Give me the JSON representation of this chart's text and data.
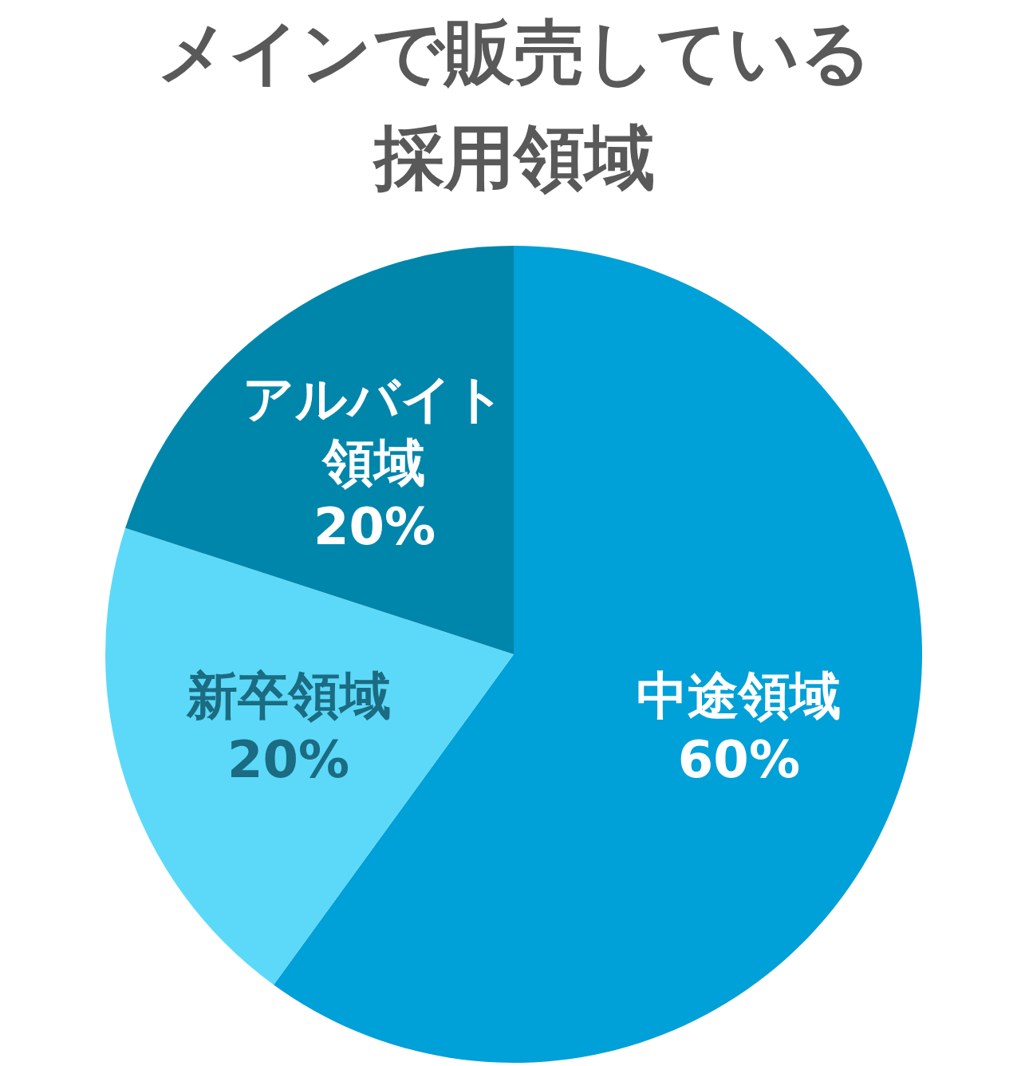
{
  "chart_data": {
    "type": "pie",
    "title": "メインで販売している採用領域",
    "categories": [
      "中途領域",
      "新卒領域",
      "アルバイト領域"
    ],
    "values": [
      60,
      20,
      20
    ],
    "value_labels": [
      "60%",
      "20%",
      "20%"
    ],
    "colors": [
      "#00a0d8",
      "#5cd9f8",
      "#0086ab"
    ]
  }
}
